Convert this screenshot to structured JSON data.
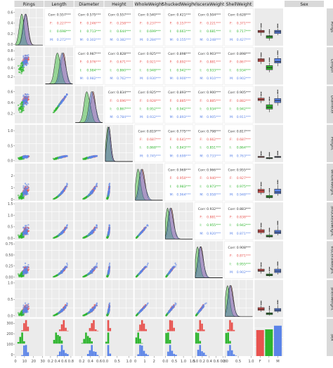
{
  "chart_data": {
    "type": "pairs",
    "variables": [
      "Rings",
      "Length",
      "Diameter",
      "Height",
      "WholeWeight",
      "ShuckedWeight",
      "VisceraWeight",
      "ShellWeight",
      "Sex"
    ],
    "groups": [
      "F",
      "I",
      "M"
    ],
    "group_colors": {
      "F": "#e8534f",
      "I": "#2db52d",
      "M": "#5b84e8"
    },
    "corr_overall_label": "Corr:",
    "corr": [
      [
        null,
        "0.557***",
        "0.575***",
        "0.557***",
        "0.540***",
        "0.421***",
        "0.504***",
        "0.628***"
      ],
      [
        null,
        null,
        "0.987***",
        "0.828***",
        "0.925***",
        "0.898***",
        "0.903***",
        "0.898***"
      ],
      [
        null,
        null,
        null,
        "0.834***",
        "0.925***",
        "0.893***",
        "0.900***",
        "0.905***"
      ],
      [
        null,
        null,
        null,
        null,
        "0.819***",
        "0.775***",
        "0.798***",
        "0.817***"
      ],
      [
        null,
        null,
        null,
        null,
        null,
        "0.969***",
        "0.966***",
        "0.955***"
      ],
      [
        null,
        null,
        null,
        null,
        null,
        null,
        "0.932***",
        "0.883***"
      ],
      [
        null,
        null,
        null,
        null,
        null,
        null,
        null,
        "0.908***"
      ]
    ],
    "corr_F": [
      [
        null,
        "0.227***",
        "0.246***",
        "0.258***",
        "0.237***",
        "0.157***",
        "0.221***",
        "0.371***"
      ],
      [
        null,
        null,
        "0.976***",
        "0.671***",
        "0.921***",
        "0.892***",
        "0.881***",
        "0.867***"
      ],
      [
        null,
        null,
        null,
        "0.696***",
        "0.928***",
        "0.885***",
        "0.885***",
        "0.882***"
      ],
      [
        null,
        null,
        null,
        null,
        "0.687***",
        "0.641***",
        "0.662***",
        "0.687***"
      ],
      [
        null,
        null,
        null,
        null,
        null,
        "0.950***",
        "0.940***",
        "0.927***"
      ],
      [
        null,
        null,
        null,
        null,
        null,
        null,
        "0.881***",
        "0.838***"
      ],
      [
        null,
        null,
        null,
        null,
        null,
        null,
        null,
        "0.871***"
      ]
    ],
    "corr_I": [
      [
        null,
        "0.698***",
        "0.713***",
        "0.644***",
        "0.699***",
        "0.661***",
        "0.681***",
        "0.717***"
      ],
      [
        null,
        null,
        "0.984***",
        "0.860***",
        "0.948***",
        "0.942***",
        "0.933***",
        "0.934***"
      ],
      [
        null,
        null,
        null,
        "0.867***",
        "0.952***",
        "0.942***",
        "0.934***",
        "0.942***"
      ],
      [
        null,
        null,
        null,
        null,
        "0.868***",
        "0.843***",
        "0.851***",
        "0.864***"
      ],
      [
        null,
        null,
        null,
        null,
        null,
        "0.983***",
        "0.973***",
        "0.975***"
      ],
      [
        null,
        null,
        null,
        null,
        null,
        null,
        "0.955***",
        "0.942***"
      ],
      [
        null,
        null,
        null,
        null,
        null,
        null,
        null,
        "0.955***"
      ]
    ],
    "corr_M": [
      [
        null,
        "0.272***",
        "0.302***",
        "0.382***",
        "0.284***",
        "0.155***",
        "0.248***",
        "0.427***"
      ],
      [
        null,
        null,
        "0.982***",
        "0.762***",
        "0.930***",
        "0.900***",
        "0.910***",
        "0.902***"
      ],
      [
        null,
        null,
        null,
        "0.784***",
        "0.932***",
        "0.893***",
        "0.905***",
        "0.911***"
      ],
      [
        null,
        null,
        null,
        null,
        "0.745***",
        "0.699***",
        "0.733***",
        "0.763***"
      ],
      [
        null,
        null,
        null,
        null,
        null,
        "0.964***",
        "0.958***",
        "0.948***"
      ],
      [
        null,
        null,
        null,
        null,
        null,
        null,
        "0.920***",
        "0.871***"
      ],
      [
        null,
        null,
        null,
        null,
        null,
        null,
        null,
        "0.902***"
      ]
    ],
    "x_ticks": {
      "Rings": [
        "0",
        "10",
        "20",
        "30"
      ],
      "Length": [
        "0.2",
        "0.4",
        "0.6",
        "0.8"
      ],
      "Diameter": [
        "0.2",
        "0.4",
        "0.6"
      ],
      "Height": [
        "0.0",
        "0.5",
        "1.0"
      ],
      "WholeWeight": [
        "0",
        "1",
        "2"
      ],
      "ShuckedWeight": [
        "0.0",
        "0.5",
        "1.0",
        "1.5"
      ],
      "VisceraWeight": [
        "0.0",
        "0.2",
        "0.4",
        "0.6",
        "0.8"
      ],
      "ShellWeight": [
        "0.0",
        "0.5",
        "1.0"
      ],
      "Sex": [
        "F",
        "I",
        "M"
      ]
    },
    "x_tick_values": {
      "Rings": [
        0,
        10,
        20,
        30
      ],
      "Length": [
        0.2,
        0.4,
        0.6,
        0.8
      ],
      "Diameter": [
        0.2,
        0.4,
        0.6
      ],
      "Height": [
        0,
        0.5,
        1.0
      ],
      "WholeWeight": [
        0,
        1,
        2
      ],
      "ShuckedWeight": [
        0,
        0.5,
        1.0,
        1.5
      ],
      "VisceraWeight": [
        0,
        0.2,
        0.4,
        0.6,
        0.8
      ],
      "ShellWeight": [
        0,
        0.5,
        1.0
      ]
    },
    "x_ranges": {
      "Rings": [
        0,
        30
      ],
      "Length": [
        0.05,
        0.85
      ],
      "Diameter": [
        0.05,
        0.68
      ],
      "Height": [
        0,
        1.15
      ],
      "WholeWeight": [
        0,
        2.9
      ],
      "ShuckedWeight": [
        0,
        1.5
      ],
      "VisceraWeight": [
        0,
        0.78
      ],
      "ShellWeight": [
        0,
        1.05
      ]
    },
    "y_ticks_left": [
      {
        "labels": [
          "0.0",
          "0.2",
          "0.4",
          "0.6"
        ],
        "values": [
          0.0,
          0.2,
          0.4,
          0.6
        ],
        "range": [
          0,
          0.65
        ]
      },
      {
        "labels": [
          "0.8",
          "0.6",
          "0.4",
          "0.2"
        ],
        "values": [
          0.8,
          0.6,
          0.4,
          0.2
        ],
        "range": [
          0.05,
          0.85
        ]
      },
      {
        "labels": [
          "0.6",
          "0.4",
          "0.2"
        ],
        "values": [
          0.6,
          0.4,
          0.2
        ],
        "range": [
          0.05,
          0.68
        ]
      },
      {
        "labels": [
          "1.0",
          "0.5",
          "0.0"
        ],
        "values": [
          1.0,
          0.5,
          0.0
        ],
        "range": [
          0,
          1.15
        ]
      },
      {
        "labels": [
          "2",
          "1",
          "0"
        ],
        "values": [
          2,
          1,
          0
        ],
        "range": [
          0,
          2.9
        ]
      },
      {
        "labels": [
          "1.5",
          "1.0",
          "0.5",
          "0.0"
        ],
        "values": [
          1.5,
          1.0,
          0.5,
          0.0
        ],
        "range": [
          0,
          1.5
        ]
      },
      {
        "labels": [
          "0.75",
          "0.50",
          "0.25",
          "0.00"
        ],
        "values": [
          0.75,
          0.5,
          0.25,
          0.0
        ],
        "range": [
          0,
          0.78
        ]
      },
      {
        "labels": [
          "1.0",
          "0.5",
          "0.0"
        ],
        "values": [
          1.0,
          0.5,
          0.0
        ],
        "range": [
          0,
          1.05
        ]
      },
      {
        "labels": [
          "300",
          "200",
          "100",
          "0"
        ],
        "values": [
          300,
          200,
          100,
          0
        ],
        "range": [
          0,
          330
        ]
      }
    ]
  }
}
